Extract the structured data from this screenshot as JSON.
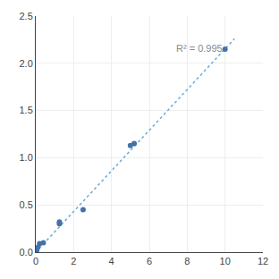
{
  "chart_data": {
    "type": "scatter",
    "x": [
      0.05,
      0.1,
      0.2,
      0.4,
      1.25,
      1.25,
      2.5,
      5.0,
      5.2,
      10.0
    ],
    "y": [
      0.02,
      0.05,
      0.09,
      0.1,
      0.3,
      0.32,
      0.45,
      1.13,
      1.15,
      2.15
    ],
    "color": "#4472a8",
    "trendline": {
      "x": [
        0.0,
        10.5
      ],
      "y": [
        0.0,
        2.26
      ],
      "color": "#6aaad4",
      "line_style": "dotted"
    },
    "annotations": [
      {
        "text": "R² = 0.995",
        "x": 7.3,
        "y": 2.08
      }
    ],
    "xlim": [
      0,
      12
    ],
    "ylim": [
      0,
      2.5
    ],
    "xticks": [
      0,
      2,
      4,
      6,
      8,
      10,
      12
    ],
    "yticks": [
      {
        "value": 0,
        "label": "0.0"
      },
      0.5,
      {
        "value": 1.0,
        "label": "1.0"
      },
      1.5,
      {
        "value": 2.0,
        "label": "2.0"
      },
      2.5
    ],
    "grid": true
  }
}
